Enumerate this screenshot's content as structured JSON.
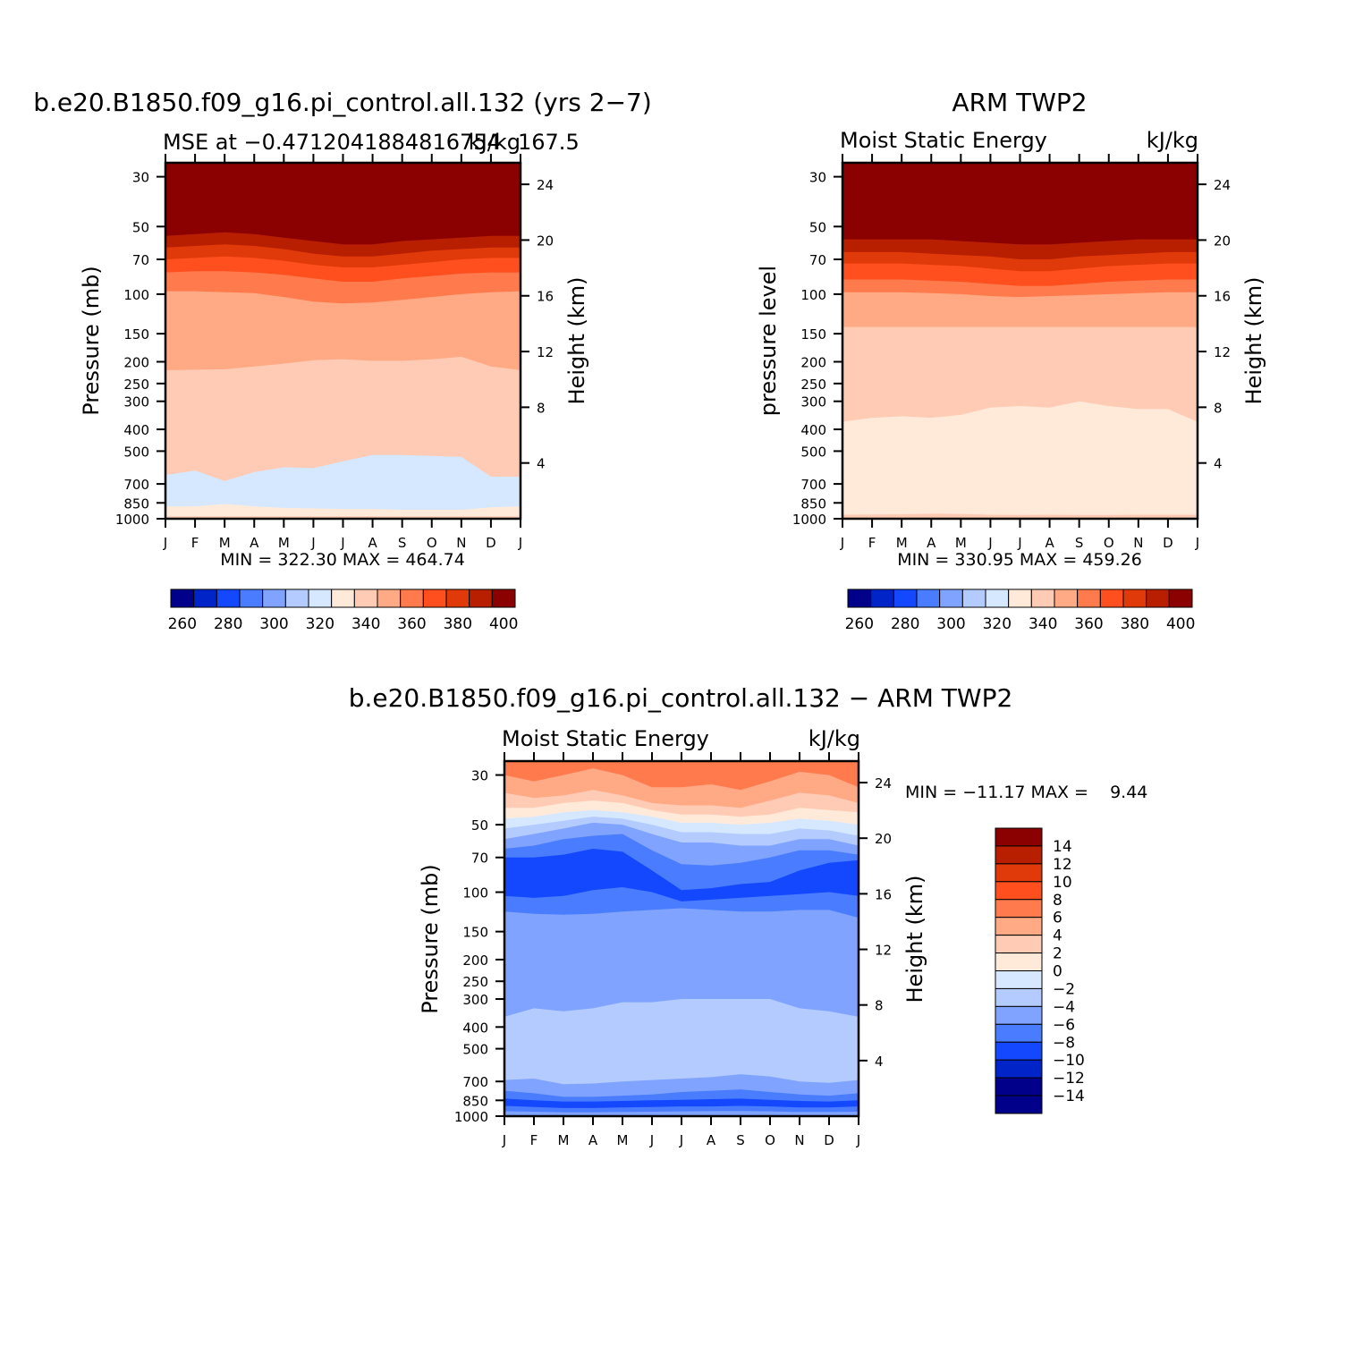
{
  "colors": {
    "palette": [
      "#00008b",
      "#0024c8",
      "#1448ff",
      "#4a7cff",
      "#7fa3ff",
      "#b3cbff",
      "#d6e8ff",
      "#ffeada",
      "#ffcbb5",
      "#ffaa85",
      "#ff7a4d",
      "#ff4f1e",
      "#e03a0a",
      "#b81f00",
      "#8b0000"
    ],
    "diff_palette": [
      "#00008b",
      "#0024c8",
      "#1448ff",
      "#4a7cff",
      "#7fa3ff",
      "#b3cbff",
      "#d6e8ff",
      "#ffeada",
      "#ffcbb5",
      "#ffaa85",
      "#ff7a4d",
      "#ff4f1e",
      "#e03a0a",
      "#b81f00",
      "#8b0000"
    ]
  },
  "chart_data": [
    {
      "id": "model",
      "type": "heatmap",
      "main_title": "b.e20.B1850.f09_g16.pi_control.all.132 (yrs 2−7)",
      "subtitle_left": "MSE at −0.4712041884816754",
      "subtitle_right": "kJ/kg",
      "subtitle_extra": "167.5",
      "ylabel": "Pressure (mb)",
      "ylabel_right": "Height (km)",
      "months": [
        "J",
        "F",
        "M",
        "A",
        "M",
        "J",
        "J",
        "A",
        "S",
        "O",
        "N",
        "D",
        "J"
      ],
      "pressure_ticks": [
        {
          "p": 30,
          "label": "30"
        },
        {
          "p": 50,
          "label": "50"
        },
        {
          "p": 70,
          "label": "70"
        },
        {
          "p": 100,
          "label": "100"
        },
        {
          "p": 150,
          "label": "150"
        },
        {
          "p": 200,
          "label": "200"
        },
        {
          "p": 250,
          "label": "250"
        },
        {
          "p": 300,
          "label": "300"
        },
        {
          "p": 400,
          "label": "400"
        },
        {
          "p": 500,
          "label": "500"
        },
        {
          "p": 700,
          "label": "700"
        },
        {
          "p": 850,
          "label": "850"
        },
        {
          "p": 1000,
          "label": "1000"
        }
      ],
      "height_ticks": [
        {
          "km": 4,
          "label": "4"
        },
        {
          "km": 8,
          "label": "8"
        },
        {
          "km": 12,
          "label": "12"
        },
        {
          "km": 16,
          "label": "16"
        },
        {
          "km": 20,
          "label": "20"
        },
        {
          "km": 24,
          "label": "24"
        }
      ],
      "p_range": [
        26,
        1000
      ],
      "bands": [
        {
          "c": 14,
          "top": [
            26,
            26,
            26,
            26,
            26,
            26,
            26,
            26,
            26,
            26,
            26,
            26,
            26
          ]
        },
        {
          "c": 13,
          "top": [
            55,
            54,
            53,
            54,
            56,
            58,
            60,
            60,
            58,
            57,
            56,
            55,
            55
          ]
        },
        {
          "c": 12,
          "top": [
            62,
            61,
            60,
            61,
            63,
            66,
            68,
            68,
            66,
            64,
            63,
            62,
            62
          ]
        },
        {
          "c": 11,
          "top": [
            70,
            69,
            68,
            69,
            71,
            74,
            76,
            76,
            74,
            72,
            70,
            69,
            69
          ]
        },
        {
          "c": 10,
          "top": [
            80,
            79,
            79,
            80,
            82,
            85,
            88,
            88,
            85,
            83,
            81,
            80,
            80
          ]
        },
        {
          "c": 9,
          "top": [
            97,
            97,
            98,
            99,
            103,
            108,
            110,
            109,
            106,
            103,
            100,
            98,
            97
          ]
        },
        {
          "c": 8,
          "top": [
            218,
            217,
            216,
            210,
            204,
            197,
            195,
            198,
            198,
            195,
            190,
            210,
            218
          ]
        },
        {
          "c": 6,
          "top": [
            640,
            610,
            680,
            620,
            590,
            595,
            555,
            520,
            520,
            525,
            530,
            650,
            650
          ]
        },
        {
          "c": 7,
          "top": [
            880,
            880,
            860,
            880,
            895,
            900,
            905,
            905,
            912,
            912,
            912,
            890,
            880
          ]
        },
        {
          "c": 8,
          "top": [
            975,
            975,
            975,
            975,
            975,
            975,
            975,
            975,
            975,
            975,
            975,
            975,
            975
          ]
        }
      ],
      "stats": "MIN = 322.30 MAX = 464.74",
      "colorbar": {
        "labels": [
          "260",
          "280",
          "300",
          "320",
          "340",
          "360",
          "380",
          "400"
        ]
      }
    },
    {
      "id": "obs",
      "type": "heatmap",
      "main_title": "ARM TWP2",
      "subtitle_left": "Moist Static Energy",
      "subtitle_right": "kJ/kg",
      "ylabel": "pressure level",
      "ylabel_right": "Height (km)",
      "months": [
        "J",
        "F",
        "M",
        "A",
        "M",
        "J",
        "J",
        "A",
        "S",
        "O",
        "N",
        "D",
        "J"
      ],
      "pressure_ticks": [
        {
          "p": 30,
          "label": "30"
        },
        {
          "p": 50,
          "label": "50"
        },
        {
          "p": 70,
          "label": "70"
        },
        {
          "p": 100,
          "label": "100"
        },
        {
          "p": 150,
          "label": "150"
        },
        {
          "p": 200,
          "label": "200"
        },
        {
          "p": 250,
          "label": "250"
        },
        {
          "p": 300,
          "label": "300"
        },
        {
          "p": 400,
          "label": "400"
        },
        {
          "p": 500,
          "label": "500"
        },
        {
          "p": 700,
          "label": "700"
        },
        {
          "p": 850,
          "label": "850"
        },
        {
          "p": 1000,
          "label": "1000"
        }
      ],
      "height_ticks": [
        {
          "km": 4,
          "label": "4"
        },
        {
          "km": 8,
          "label": "8"
        },
        {
          "km": 12,
          "label": "12"
        },
        {
          "km": 16,
          "label": "16"
        },
        {
          "km": 20,
          "label": "20"
        },
        {
          "km": 24,
          "label": "24"
        }
      ],
      "p_range": [
        26,
        1000
      ],
      "bands": [
        {
          "c": 14,
          "top": [
            26,
            26,
            26,
            26,
            26,
            26,
            26,
            26,
            26,
            26,
            26,
            26,
            26
          ]
        },
        {
          "c": 13,
          "top": [
            57,
            57,
            57,
            57,
            58,
            59,
            60,
            60,
            59,
            58,
            57,
            57,
            57
          ]
        },
        {
          "c": 12,
          "top": [
            65,
            65,
            65,
            66,
            67,
            68,
            70,
            70,
            68,
            67,
            66,
            65,
            65
          ]
        },
        {
          "c": 11,
          "top": [
            73,
            73,
            73,
            74,
            75,
            77,
            79,
            79,
            77,
            75,
            74,
            73,
            73
          ]
        },
        {
          "c": 10,
          "top": [
            86,
            86,
            86,
            87,
            88,
            90,
            92,
            92,
            90,
            88,
            87,
            86,
            86
          ]
        },
        {
          "c": 9,
          "top": [
            98,
            98,
            98,
            99,
            100,
            102,
            103,
            102,
            101,
            100,
            99,
            98,
            98
          ]
        },
        {
          "c": 8,
          "top": [
            140,
            140,
            140,
            140,
            140,
            140,
            140,
            140,
            140,
            140,
            140,
            140,
            140
          ]
        },
        {
          "c": 7,
          "top": [
            370,
            355,
            350,
            355,
            345,
            320,
            315,
            320,
            300,
            315,
            325,
            325,
            370
          ]
        },
        {
          "c": 8,
          "top": [
            960,
            958,
            955,
            950,
            952,
            960,
            962,
            960,
            962,
            962,
            960,
            960,
            960
          ]
        }
      ],
      "stats": "MIN = 330.95 MAX = 459.26",
      "colorbar": {
        "labels": [
          "260",
          "280",
          "300",
          "320",
          "340",
          "360",
          "380",
          "400"
        ]
      }
    },
    {
      "id": "diff",
      "type": "heatmap",
      "main_title": "b.e20.B1850.f09_g16.pi_control.all.132 − ARM TWP2",
      "subtitle_left": "Moist Static Energy",
      "subtitle_right": "kJ/kg",
      "ylabel": "Pressure (mb)",
      "ylabel_right": "Height (km)",
      "months": [
        "J",
        "F",
        "M",
        "A",
        "M",
        "J",
        "J",
        "A",
        "S",
        "O",
        "N",
        "D",
        "J"
      ],
      "pressure_ticks": [
        {
          "p": 30,
          "label": "30"
        },
        {
          "p": 50,
          "label": "50"
        },
        {
          "p": 70,
          "label": "70"
        },
        {
          "p": 100,
          "label": "100"
        },
        {
          "p": 150,
          "label": "150"
        },
        {
          "p": 200,
          "label": "200"
        },
        {
          "p": 250,
          "label": "250"
        },
        {
          "p": 300,
          "label": "300"
        },
        {
          "p": 400,
          "label": "400"
        },
        {
          "p": 500,
          "label": "500"
        },
        {
          "p": 700,
          "label": "700"
        },
        {
          "p": 850,
          "label": "850"
        },
        {
          "p": 1000,
          "label": "1000"
        }
      ],
      "height_ticks": [
        {
          "km": 4,
          "label": "4"
        },
        {
          "km": 8,
          "label": "8"
        },
        {
          "km": 12,
          "label": "12"
        },
        {
          "km": 16,
          "label": "16"
        },
        {
          "km": 20,
          "label": "20"
        },
        {
          "km": 24,
          "label": "24"
        }
      ],
      "p_range": [
        26,
        1000
      ],
      "bands": [
        {
          "c": 10,
          "top": [
            26,
            26,
            26,
            26,
            26,
            26,
            26,
            26,
            26,
            26,
            26,
            26,
            26
          ]
        },
        {
          "c": 9,
          "top": [
            30,
            32,
            30,
            28,
            30,
            34,
            34,
            33,
            35,
            32,
            29,
            30,
            34
          ]
        },
        {
          "c": 8,
          "top": [
            36,
            38,
            37,
            35,
            37,
            40,
            41,
            41,
            42,
            39,
            36,
            37,
            40
          ]
        },
        {
          "c": 7,
          "top": [
            42,
            42,
            40,
            39,
            40,
            43,
            45,
            45,
            46,
            45,
            42,
            43,
            44
          ]
        },
        {
          "c": 6,
          "top": [
            47,
            46,
            44,
            43,
            44,
            46,
            49,
            49,
            50,
            49,
            47,
            48,
            50
          ]
        },
        {
          "c": 5,
          "top": [
            52,
            50,
            48,
            46,
            47,
            50,
            54,
            54,
            55,
            55,
            52,
            53,
            56
          ]
        },
        {
          "c": 4,
          "top": [
            58,
            55,
            52,
            49,
            50,
            55,
            60,
            60,
            62,
            62,
            58,
            58,
            62
          ]
        },
        {
          "c": 3,
          "top": [
            64,
            62,
            58,
            56,
            55,
            65,
            75,
            76,
            74,
            70,
            65,
            65,
            68
          ]
        },
        {
          "c": 2,
          "top": [
            70,
            70,
            68,
            64,
            66,
            80,
            98,
            96,
            92,
            90,
            80,
            74,
            72
          ]
        },
        {
          "c": 3,
          "top": [
            104,
            106,
            104,
            98,
            95,
            100,
            110,
            108,
            106,
            104,
            102,
            100,
            104
          ]
        },
        {
          "c": 4,
          "top": [
            122,
            125,
            126,
            125,
            122,
            120,
            118,
            120,
            122,
            122,
            120,
            120,
            130
          ]
        },
        {
          "c": 5,
          "top": [
            360,
            330,
            340,
            330,
            310,
            310,
            300,
            300,
            300,
            300,
            330,
            340,
            360
          ]
        },
        {
          "c": 4,
          "top": [
            690,
            680,
            720,
            715,
            700,
            690,
            680,
            670,
            650,
            665,
            700,
            710,
            690
          ]
        },
        {
          "c": 3,
          "top": [
            770,
            790,
            820,
            820,
            810,
            800,
            780,
            770,
            760,
            780,
            800,
            810,
            790
          ]
        },
        {
          "c": 2,
          "top": [
            835,
            850,
            860,
            860,
            855,
            850,
            845,
            840,
            835,
            845,
            855,
            860,
            850
          ]
        },
        {
          "c": 3,
          "top": [
            900,
            910,
            920,
            920,
            915,
            910,
            905,
            905,
            900,
            905,
            915,
            915,
            905
          ]
        },
        {
          "c": 4,
          "top": [
            950,
            955,
            960,
            960,
            958,
            955,
            952,
            950,
            948,
            952,
            958,
            958,
            955
          ]
        }
      ],
      "stats": "MIN = −11.17 MAX =    9.44",
      "colorbar": {
        "labels": [
          "14",
          "12",
          "10",
          "8",
          "6",
          "4",
          "2",
          "0",
          "−2",
          "−4",
          "−6",
          "−8",
          "−10",
          "−12",
          "−14"
        ]
      }
    }
  ]
}
